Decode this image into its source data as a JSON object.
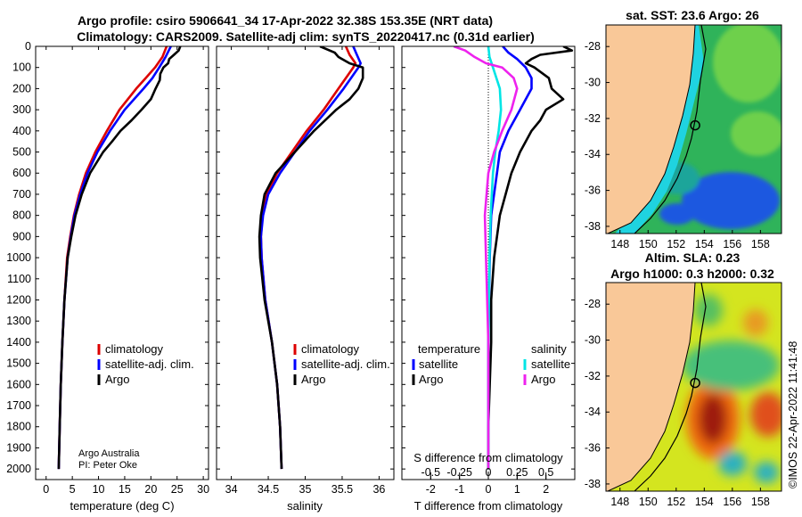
{
  "title_line1": "Argo profile: csiro 5906641_34 17-Apr-2022 32.38S 153.35E (NRT data)",
  "title_line2": "Climatology: CARS2009. Satellite-adj clim: synTS_20220417.nc (0.31d earlier)",
  "colors": {
    "climatology": "#dd0000",
    "satellite_adj": "#0000ff",
    "argo": "#000000",
    "sat_salinity": "#00e5e5",
    "argo_salinity": "#ee22ee",
    "land": "#f9c898",
    "sea_green": "#2fb35a",
    "sea_yellow": "#d4e51f"
  },
  "chart_data": [
    {
      "type": "line",
      "name": "temperature",
      "xlabel": "temperature (deg C)",
      "xlim": [
        -2,
        31
      ],
      "xticks": [
        0,
        5,
        10,
        15,
        20,
        25,
        30
      ],
      "ylim": [
        0,
        2050
      ],
      "yticks": [
        0,
        100,
        200,
        300,
        400,
        500,
        600,
        700,
        800,
        900,
        1000,
        1100,
        1200,
        1300,
        1400,
        1500,
        1600,
        1700,
        1800,
        1900,
        2000
      ],
      "legend": [
        "climatology",
        "satellite-adj. clim.",
        "Argo"
      ],
      "legend_placement": "lower-right",
      "annotations": [
        "Argo Australia",
        "PI: Peter Oke"
      ],
      "series": [
        {
          "name": "climatology",
          "color_key": "climatology",
          "depth": [
            0,
            50,
            100,
            150,
            200,
            300,
            400,
            500,
            600,
            700,
            800,
            900,
            1000,
            1200,
            1400,
            1600,
            1800,
            2000
          ],
          "values": [
            23.0,
            22.2,
            20.8,
            19.0,
            17.2,
            14.0,
            11.6,
            9.4,
            7.6,
            6.3,
            5.3,
            4.6,
            4.0,
            3.5,
            3.1,
            2.8,
            2.6,
            2.4
          ]
        },
        {
          "name": "satellite-adj. clim.",
          "color_key": "satellite_adj",
          "depth": [
            0,
            50,
            100,
            150,
            200,
            300,
            400,
            500,
            600,
            700,
            800,
            900,
            1000,
            1200,
            1400,
            1600,
            1800,
            2000
          ],
          "values": [
            23.8,
            22.8,
            21.6,
            20.3,
            18.6,
            15.0,
            12.2,
            9.8,
            7.9,
            6.5,
            5.4,
            4.7,
            4.1,
            3.5,
            3.1,
            2.8,
            2.6,
            2.4
          ]
        },
        {
          "name": "Argo",
          "color_key": "argo",
          "depth": [
            0,
            20,
            40,
            60,
            80,
            100,
            130,
            160,
            200,
            250,
            300,
            350,
            400,
            450,
            500,
            600,
            700,
            800,
            900,
            1000,
            1200,
            1400,
            1600,
            1800,
            2000
          ],
          "values": [
            25.6,
            25.3,
            24.4,
            23.5,
            23.3,
            22.4,
            21.8,
            21.7,
            20.9,
            20.0,
            18.2,
            16.3,
            14.2,
            12.6,
            10.9,
            8.4,
            6.8,
            5.6,
            4.8,
            4.1,
            3.5,
            3.1,
            2.8,
            2.6,
            2.4
          ]
        }
      ]
    },
    {
      "type": "line",
      "name": "salinity",
      "xlabel": "salinity",
      "xlim": [
        33.8,
        36.2
      ],
      "xticks": [
        34,
        34.5,
        35,
        35.5,
        36
      ],
      "xtick_labels": [
        "34",
        "34.5",
        "35",
        "35.5",
        "36"
      ],
      "ylim": [
        0,
        2050
      ],
      "legend": [
        "climatology",
        "satellite-adj. clim.",
        "Argo"
      ],
      "legend_placement": "lower-right",
      "series": [
        {
          "name": "climatology",
          "color_key": "climatology",
          "depth": [
            0,
            40,
            80,
            100,
            150,
            200,
            300,
            400,
            500,
            600,
            700,
            800,
            900,
            1000,
            1200,
            1400,
            1600,
            1800,
            2000
          ],
          "values": [
            35.55,
            35.6,
            35.68,
            35.65,
            35.55,
            35.45,
            35.25,
            35.02,
            34.82,
            34.62,
            34.48,
            34.42,
            34.4,
            34.41,
            34.46,
            34.55,
            34.62,
            34.66,
            34.68
          ]
        },
        {
          "name": "satellite-adj. clim.",
          "color_key": "satellite_adj",
          "depth": [
            0,
            40,
            80,
            100,
            150,
            200,
            300,
            400,
            500,
            600,
            700,
            800,
            900,
            1000,
            1200,
            1400,
            1600,
            1800,
            2000
          ],
          "values": [
            35.65,
            35.7,
            35.75,
            35.72,
            35.62,
            35.52,
            35.3,
            35.06,
            34.86,
            34.66,
            34.5,
            34.43,
            34.4,
            34.41,
            34.46,
            34.55,
            34.62,
            34.66,
            34.68
          ]
        },
        {
          "name": "Argo",
          "color_key": "argo",
          "depth": [
            0,
            30,
            50,
            80,
            100,
            150,
            200,
            250,
            300,
            400,
            500,
            600,
            700,
            800,
            900,
            1000,
            1200,
            1400,
            1600,
            1800,
            2000
          ],
          "values": [
            35.2,
            35.4,
            35.45,
            35.6,
            35.78,
            35.78,
            35.72,
            35.6,
            35.42,
            35.12,
            34.86,
            34.6,
            34.45,
            34.4,
            34.38,
            34.39,
            34.45,
            34.55,
            34.62,
            34.66,
            34.68
          ]
        }
      ]
    },
    {
      "type": "line",
      "name": "difference",
      "xlabel": "T difference from climatology",
      "xlim": [
        -3,
        3
      ],
      "xticks": [
        -2,
        -1,
        0,
        1,
        2
      ],
      "s_axis_label": "S difference from climatology",
      "s_ticks": [
        -0.5,
        -0.25,
        0,
        0.25,
        0.5
      ],
      "s_tick_labels": [
        "-0.5",
        "-0.25",
        "0",
        "0.25",
        "0.5"
      ],
      "zero_line": "dotted",
      "legend_left_title": "temperature",
      "legend_right_title": "salinity",
      "legend_left": [
        "satellite",
        "Argo"
      ],
      "legend_right": [
        "satellite",
        "Argo"
      ],
      "series": [
        {
          "name": "temperature satellite",
          "color_key": "satellite_adj",
          "units": "deg C",
          "depth": [
            0,
            30,
            60,
            100,
            150,
            200,
            300,
            400,
            500,
            600,
            800,
            1000,
            1400,
            2000
          ],
          "values": [
            0.5,
            0.7,
            1.0,
            1.3,
            1.5,
            1.5,
            1.1,
            0.7,
            0.4,
            0.3,
            0.1,
            0.05,
            0.0,
            0.0
          ]
        },
        {
          "name": "temperature Argo",
          "color_key": "argo",
          "units": "deg C",
          "depth": [
            0,
            20,
            40,
            60,
            80,
            100,
            150,
            200,
            250,
            300,
            350,
            400,
            500,
            600,
            700,
            800,
            900,
            1000,
            1200,
            1400,
            1600,
            1800,
            2000
          ],
          "values": [
            2.6,
            2.9,
            1.8,
            1.5,
            1.3,
            1.6,
            2.1,
            2.2,
            2.6,
            2.0,
            1.8,
            1.5,
            1.1,
            0.8,
            0.6,
            0.4,
            0.3,
            0.2,
            0.1,
            0.1,
            0.05,
            0.0,
            0.0
          ]
        },
        {
          "name": "salinity satellite",
          "color_key": "sat_salinity",
          "units": "psu",
          "depth": [
            0,
            50,
            100,
            200,
            300,
            400,
            500,
            600,
            800,
            1000,
            1400,
            2000
          ],
          "values": [
            0.0,
            0.01,
            0.04,
            0.1,
            0.11,
            0.09,
            0.06,
            0.04,
            0.02,
            0.01,
            0.0,
            0.0
          ]
        },
        {
          "name": "salinity Argo",
          "color_key": "argo_salinity",
          "units": "psu",
          "depth": [
            0,
            20,
            50,
            80,
            100,
            150,
            200,
            300,
            400,
            500,
            600,
            800,
            1000,
            1200,
            1400,
            2000
          ],
          "values": [
            -0.3,
            -0.2,
            -0.12,
            -0.02,
            0.12,
            0.22,
            0.25,
            0.2,
            0.12,
            0.05,
            0.0,
            -0.03,
            -0.02,
            -0.01,
            0.0,
            0.0
          ]
        }
      ]
    },
    {
      "type": "heatmap",
      "name": "satellite SST map",
      "title": "sat. SST: 23.6 Argo: 26",
      "lon_ticks": [
        148,
        150,
        152,
        154,
        156,
        158
      ],
      "lat_ticks": [
        -28,
        -30,
        -32,
        -34,
        -36,
        -38
      ],
      "lon_range": [
        147,
        159.5
      ],
      "lat_range": [
        -38.4,
        -26.8
      ],
      "argo_position": {
        "lon": 153.35,
        "lat": -32.38
      }
    },
    {
      "type": "heatmap",
      "name": "altimetry SLA map",
      "title_line1": "Altim. SLA: 0.23",
      "title_line2": "Argo h1000: 0.3 h2000: 0.32",
      "lon_ticks": [
        148,
        150,
        152,
        154,
        156,
        158
      ],
      "lat_ticks": [
        -28,
        -30,
        -32,
        -34,
        -36,
        -38
      ],
      "lon_range": [
        147,
        159.5
      ],
      "lat_range": [
        -38.4,
        -26.8
      ],
      "argo_position": {
        "lon": 153.35,
        "lat": -32.38
      }
    }
  ],
  "timestamp": "©IMOS 22-Apr-2022 11:41:48"
}
